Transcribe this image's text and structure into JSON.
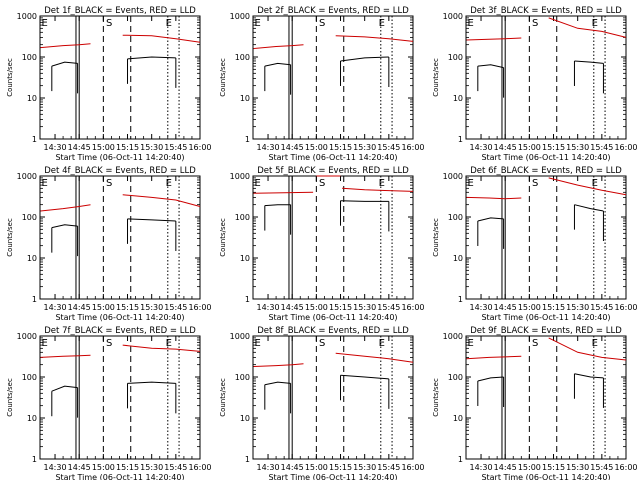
{
  "figure": {
    "x_tick_labels": [
      "14:30",
      "14:45",
      "15:00",
      "15:15",
      "15:30",
      "15:45",
      "16:00"
    ],
    "y_tick_labels": [
      "1",
      "10",
      "100",
      "1000"
    ],
    "ylabel": "Counts/sec",
    "xlabel": "Start Time (06-Oct-11 14:20:40)",
    "colors": {
      "events": "#000000",
      "lld": "#cc0000"
    }
  },
  "chart_data": [
    {
      "type": "line",
      "title": "Det 1f_BLACK = Events, RED = LLD",
      "xlim": [
        "14:20:40",
        "16:00"
      ],
      "ylim": [
        1,
        1000
      ],
      "yscale": "log",
      "markers": [
        "E",
        "S",
        "E"
      ],
      "series": [
        {
          "name": "Events",
          "segments": [
            {
              "x": [
                "14:28",
                "14:36",
                "14:44"
              ],
              "y": [
                60,
                75,
                70
              ]
            },
            {
              "x": [
                "15:15",
                "15:30",
                "15:45"
              ],
              "y": [
                90,
                100,
                95
              ]
            }
          ]
        },
        {
          "name": "LLD",
          "segments": [
            {
              "x": [
                "14:21",
                "14:35",
                "14:45",
                "14:52"
              ],
              "y": [
                170,
                190,
                200,
                210
              ]
            },
            {
              "x": [
                "15:12",
                "15:30",
                "15:45",
                "16:00"
              ],
              "y": [
                340,
                330,
                280,
                230
              ]
            }
          ]
        }
      ]
    },
    {
      "type": "line",
      "title": "Det 2f_BLACK = Events, RED = LLD",
      "xlim": [
        "14:20:40",
        "16:00"
      ],
      "ylim": [
        1,
        1000
      ],
      "yscale": "log",
      "markers": [
        "E",
        "S",
        "E"
      ],
      "series": [
        {
          "name": "Events",
          "segments": [
            {
              "x": [
                "14:28",
                "14:36",
                "14:44"
              ],
              "y": [
                60,
                70,
                65
              ]
            },
            {
              "x": [
                "15:15",
                "15:30",
                "15:45"
              ],
              "y": [
                80,
                95,
                100
              ]
            }
          ]
        },
        {
          "name": "LLD",
          "segments": [
            {
              "x": [
                "14:21",
                "14:35",
                "14:45",
                "14:52"
              ],
              "y": [
                160,
                180,
                190,
                200
              ]
            },
            {
              "x": [
                "15:12",
                "15:30",
                "15:45",
                "16:00"
              ],
              "y": [
                330,
                310,
                280,
                240
              ]
            }
          ]
        }
      ]
    },
    {
      "type": "line",
      "title": "Det 3f_BLACK = Events, RED = LLD",
      "xlim": [
        "14:20:40",
        "16:00"
      ],
      "ylim": [
        1,
        1000
      ],
      "yscale": "log",
      "markers": [
        "E",
        "S",
        "E"
      ],
      "series": [
        {
          "name": "Events",
          "segments": [
            {
              "x": [
                "14:28",
                "14:36",
                "14:44"
              ],
              "y": [
                60,
                65,
                55
              ]
            },
            {
              "x": [
                "15:28",
                "15:38",
                "15:46"
              ],
              "y": [
                80,
                75,
                70
              ]
            }
          ]
        },
        {
          "name": "LLD",
          "segments": [
            {
              "x": [
                "14:21",
                "14:35",
                "14:45",
                "14:55"
              ],
              "y": [
                260,
                270,
                280,
                290
              ]
            },
            {
              "x": [
                "15:12",
                "15:30",
                "15:45",
                "16:00"
              ],
              "y": [
                900,
                500,
                420,
                300
              ]
            }
          ]
        }
      ]
    },
    {
      "type": "line",
      "title": "Det 4f_BLACK = Events, RED = LLD",
      "xlim": [
        "14:20:40",
        "16:00"
      ],
      "ylim": [
        1,
        1000
      ],
      "yscale": "log",
      "markers": [
        "E",
        "S",
        "E"
      ],
      "series": [
        {
          "name": "Events",
          "segments": [
            {
              "x": [
                "14:28",
                "14:36",
                "14:44"
              ],
              "y": [
                55,
                65,
                60
              ]
            },
            {
              "x": [
                "15:15",
                "15:30",
                "15:45"
              ],
              "y": [
                90,
                85,
                80
              ]
            }
          ]
        },
        {
          "name": "LLD",
          "segments": [
            {
              "x": [
                "14:21",
                "14:35",
                "14:45",
                "14:52"
              ],
              "y": [
                140,
                160,
                180,
                200
              ]
            },
            {
              "x": [
                "15:12",
                "15:30",
                "15:45",
                "16:00"
              ],
              "y": [
                350,
                300,
                260,
                180
              ]
            }
          ]
        }
      ]
    },
    {
      "type": "line",
      "title": "Det 5f_BLACK = Events, RED = LLD",
      "xlim": [
        "14:20:40",
        "16:00"
      ],
      "ylim": [
        1,
        1000
      ],
      "yscale": "log",
      "markers": [
        "E",
        "S",
        "E"
      ],
      "series": [
        {
          "name": "Events",
          "segments": [
            {
              "x": [
                "14:28",
                "14:36",
                "14:44"
              ],
              "y": [
                190,
                200,
                200
              ]
            },
            {
              "x": [
                "15:15",
                "15:30",
                "15:45"
              ],
              "y": [
                250,
                240,
                240
              ]
            }
          ]
        },
        {
          "name": "LLD",
          "segments": [
            {
              "x": [
                "14:21",
                "14:40",
                "14:58"
              ],
              "y": [
                380,
                390,
                400
              ]
            },
            {
              "x": [
                "15:00",
                "15:15"
              ],
              "y": [
                1000,
                1000
              ]
            },
            {
              "x": [
                "15:16",
                "15:30",
                "16:00"
              ],
              "y": [
                500,
                460,
                420
              ]
            }
          ]
        }
      ]
    },
    {
      "type": "line",
      "title": "Det 6f_BLACK = Events, RED = LLD",
      "xlim": [
        "14:20:40",
        "16:00"
      ],
      "ylim": [
        1,
        1000
      ],
      "yscale": "log",
      "markers": [
        "E",
        "S",
        "E"
      ],
      "series": [
        {
          "name": "Events",
          "segments": [
            {
              "x": [
                "14:28",
                "14:36",
                "14:44"
              ],
              "y": [
                80,
                95,
                90
              ]
            },
            {
              "x": [
                "15:28",
                "15:38",
                "15:46"
              ],
              "y": [
                200,
                160,
                140
              ]
            }
          ]
        },
        {
          "name": "LLD",
          "segments": [
            {
              "x": [
                "14:21",
                "14:35",
                "14:45",
                "14:55"
              ],
              "y": [
                300,
                290,
                280,
                290
              ]
            },
            {
              "x": [
                "15:12",
                "15:30",
                "15:45",
                "16:00"
              ],
              "y": [
                900,
                600,
                450,
                350
              ]
            }
          ]
        }
      ]
    },
    {
      "type": "line",
      "title": "Det 7f_BLACK = Events, RED = LLD",
      "xlim": [
        "14:20:40",
        "16:00"
      ],
      "ylim": [
        1,
        1000
      ],
      "yscale": "log",
      "markers": [
        "E",
        "S",
        "E"
      ],
      "series": [
        {
          "name": "Events",
          "segments": [
            {
              "x": [
                "14:28",
                "14:36",
                "14:44"
              ],
              "y": [
                45,
                60,
                55
              ]
            },
            {
              "x": [
                "15:15",
                "15:30",
                "15:45"
              ],
              "y": [
                70,
                75,
                70
              ]
            }
          ]
        },
        {
          "name": "LLD",
          "segments": [
            {
              "x": [
                "14:21",
                "14:35",
                "14:45",
                "14:52"
              ],
              "y": [
                300,
                320,
                330,
                340
              ]
            },
            {
              "x": [
                "15:12",
                "15:30",
                "15:45",
                "16:00"
              ],
              "y": [
                600,
                500,
                480,
                420
              ]
            }
          ]
        }
      ]
    },
    {
      "type": "line",
      "title": "Det 8f_BLACK = Events, RED = LLD",
      "xlim": [
        "14:20:40",
        "16:00"
      ],
      "ylim": [
        1,
        1000
      ],
      "yscale": "log",
      "markers": [
        "E",
        "S",
        "E"
      ],
      "series": [
        {
          "name": "Events",
          "segments": [
            {
              "x": [
                "14:28",
                "14:36",
                "14:44"
              ],
              "y": [
                65,
                75,
                70
              ]
            },
            {
              "x": [
                "15:15",
                "15:30",
                "15:45"
              ],
              "y": [
                110,
                100,
                90
              ]
            }
          ]
        },
        {
          "name": "LLD",
          "segments": [
            {
              "x": [
                "14:21",
                "14:35",
                "14:45",
                "14:52"
              ],
              "y": [
                180,
                190,
                200,
                210
              ]
            },
            {
              "x": [
                "15:12",
                "15:30",
                "15:45",
                "16:00"
              ],
              "y": [
                380,
                320,
                280,
                230
              ]
            }
          ]
        }
      ]
    },
    {
      "type": "line",
      "title": "Det 9f_BLACK = Events, RED = LLD",
      "xlim": [
        "14:20:40",
        "16:00"
      ],
      "ylim": [
        1,
        1000
      ],
      "yscale": "log",
      "markers": [
        "E",
        "S",
        "E"
      ],
      "series": [
        {
          "name": "Events",
          "segments": [
            {
              "x": [
                "14:28",
                "14:36",
                "14:44"
              ],
              "y": [
                80,
                95,
                100
              ]
            },
            {
              "x": [
                "15:28",
                "15:38",
                "15:46"
              ],
              "y": [
                120,
                100,
                95
              ]
            }
          ]
        },
        {
          "name": "LLD",
          "segments": [
            {
              "x": [
                "14:21",
                "14:35",
                "14:45",
                "14:55"
              ],
              "y": [
                280,
                300,
                310,
                320
              ]
            },
            {
              "x": [
                "15:12",
                "15:30",
                "15:45",
                "16:00"
              ],
              "y": [
                900,
                400,
                300,
                260
              ]
            }
          ]
        }
      ]
    }
  ]
}
